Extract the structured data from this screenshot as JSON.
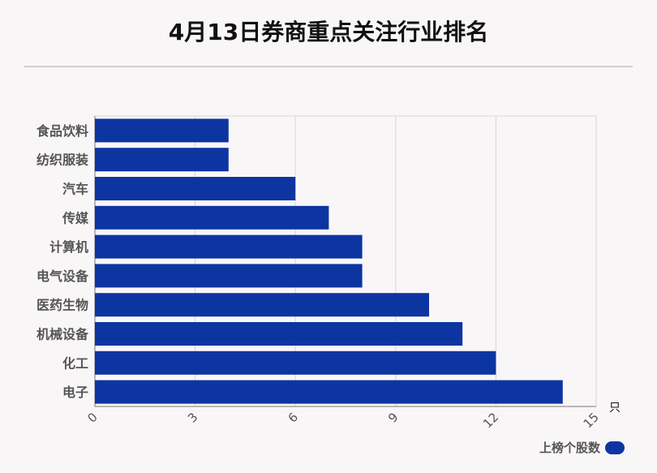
{
  "title": "4月13日券商重点关注行业排名",
  "colors": {
    "bar": "#0d35a1",
    "background": "#f9f6f8"
  },
  "legend": {
    "label": "上榜个股数"
  },
  "chart_data": {
    "type": "bar",
    "orientation": "horizontal",
    "categories": [
      "食品饮料",
      "纺织服装",
      "汽车",
      "传媒",
      "计算机",
      "电气设备",
      "医药生物",
      "机械设备",
      "化工",
      "电子"
    ],
    "series": [
      {
        "name": "上榜个股数",
        "values": [
          4,
          4,
          6,
          7,
          8,
          8,
          10,
          11,
          12,
          14
        ]
      }
    ],
    "xlim": [
      0,
      15
    ],
    "xticks": [
      "0",
      "3",
      "6",
      "9",
      "12",
      "15"
    ],
    "xunit": "只",
    "grid": true,
    "legend_position": "bottom-right"
  }
}
